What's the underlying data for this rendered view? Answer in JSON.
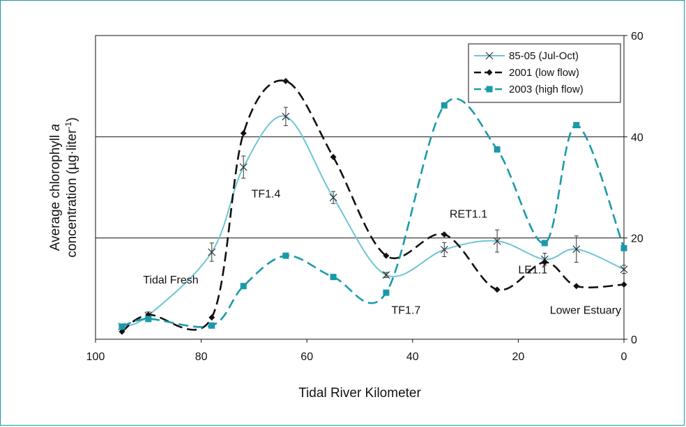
{
  "chart_data": {
    "type": "line",
    "xlabel": "Tidal River Kilometer",
    "ylabel_line1": "Average chlorophyll a",
    "ylabel_line2": "concentration (µg·liter⁻¹)",
    "xlim": [
      100,
      0
    ],
    "ylim": [
      0,
      60
    ],
    "x_ticks": [
      "100",
      "80",
      "60",
      "40",
      "20",
      "0"
    ],
    "y_ticks": [
      "0",
      "20",
      "40",
      "60"
    ],
    "gridlines_y": [
      20,
      40
    ],
    "legend_position": "top-right",
    "series": [
      {
        "name": "85-05 (Jul-Oct)",
        "color": "#6cc5d4",
        "marker": "x",
        "dash": "solid",
        "x": [
          95,
          90,
          78,
          72,
          64,
          55,
          45,
          34,
          24,
          15,
          9,
          0
        ],
        "y": [
          2.5,
          4.7,
          17.2,
          34,
          44,
          28,
          12.7,
          17.7,
          19.4,
          15.8,
          17.8,
          13.8
        ],
        "err": [
          0.4,
          0.7,
          1.8,
          2.2,
          1.8,
          1.2,
          0.5,
          1.4,
          2.2,
          1.2,
          2.6,
          0.8
        ]
      },
      {
        "name": "2001 (low flow)",
        "color": "#111111",
        "marker": "diamond",
        "dash": "dashed",
        "x": [
          95,
          90,
          78,
          72,
          64,
          55,
          45,
          34,
          24,
          15,
          9,
          0
        ],
        "y": [
          1.5,
          4.8,
          4.3,
          40.7,
          51,
          36,
          16.5,
          20.7,
          9.8,
          15.2,
          10.5,
          10.8
        ]
      },
      {
        "name": "2003 (high flow)",
        "color": "#1a9aa8",
        "marker": "square",
        "dash": "dashed",
        "x": [
          95,
          90,
          78,
          72,
          64,
          55,
          45,
          34,
          24,
          15,
          9,
          0
        ],
        "y": [
          2.5,
          4.0,
          2.7,
          10.5,
          16.5,
          12.3,
          9.2,
          46.2,
          37.5,
          19.0,
          42.3,
          18.0
        ]
      }
    ],
    "annotations": [
      {
        "text": "Tidal Fresh",
        "x": 91,
        "y": 11
      },
      {
        "text": "TF1.4",
        "x": 70.5,
        "y": 28
      },
      {
        "text": "TF1.7",
        "x": 44,
        "y": 5
      },
      {
        "text": "RET1.1",
        "x": 33,
        "y": 24
      },
      {
        "text": "LE1.1",
        "x": 20,
        "y": 13
      },
      {
        "text": "Lower Estuary",
        "x": 0.5,
        "y": 5
      }
    ]
  }
}
